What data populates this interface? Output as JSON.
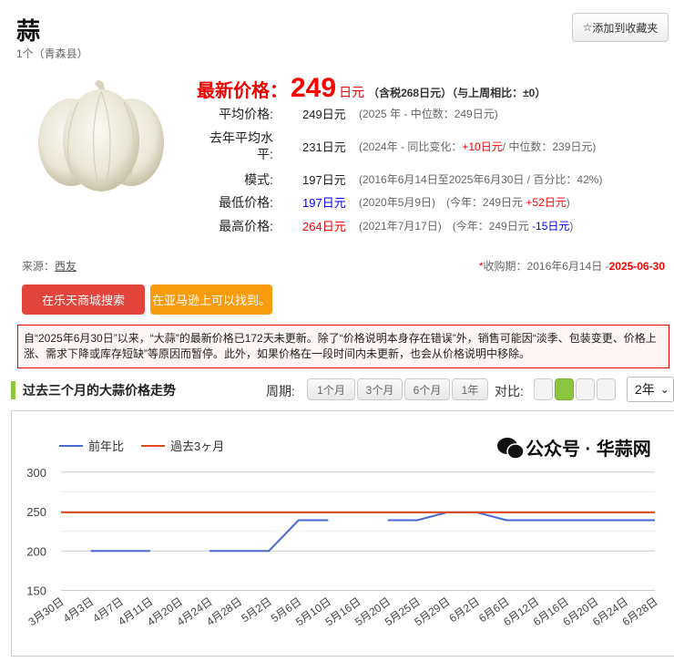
{
  "header": {
    "title": "蒜",
    "subtitle": "1个（青森县）",
    "favorite_icon": "star-outline-icon",
    "favorite_label": "添加到收藏夹"
  },
  "latest": {
    "label": "最新价格：",
    "price": "249",
    "unit": "日元",
    "tax_note": "（含税268日元）（与上周相比：±0）"
  },
  "stats": [
    {
      "key": "平均价格:",
      "value": "249日元",
      "value_color": "#222222",
      "note": [
        {
          "t": "(2025 年 - 中位数：249日元)"
        }
      ]
    },
    {
      "key": "去年平均水平:",
      "value": "231日元",
      "value_color": "#222222",
      "note": [
        {
          "t": "(2024年 - 同比变化："
        },
        {
          "t": "+10日元",
          "c": "#ff0000"
        },
        {
          "t": "/ 中位数：239日元)"
        }
      ]
    },
    {
      "key": "模式:",
      "value": "197日元",
      "value_color": "#222222",
      "note": [
        {
          "t": "(2016年6月14日至2025年6月30日 / 百分比：42%)"
        }
      ]
    },
    {
      "key": "最低价格:",
      "value": "197日元",
      "value_color": "#0000ff",
      "note": [
        {
          "t": "(2020年5月9日)　(今年：249日元 "
        },
        {
          "t": "+52日元",
          "c": "#ff0000"
        },
        {
          "t": ")"
        }
      ]
    },
    {
      "key": "最高价格:",
      "value": "264日元",
      "value_color": "#ff0000",
      "note": [
        {
          "t": "(2021年7月17日)　(今年：249日元 "
        },
        {
          "t": "-15日元",
          "c": "#0000ff"
        },
        {
          "t": ")"
        }
      ]
    }
  ],
  "source": {
    "label": "来源：",
    "link": "西友"
  },
  "period": {
    "prefix": "*",
    "label": "收购期：2016年6月14日 -",
    "end": "2025-06-30"
  },
  "buttons": {
    "rakuten": "在乐天商城搜索",
    "amazon": "在亚马逊上可以找到。",
    "rakuten_color": "#e2453c",
    "amazon_color": "#f89c0e"
  },
  "notice": "自“2025年6月30日”以来，“大蒜”的最新价格已172天未更新。除了“价格说明本身存在错误”外，销售可能因“淡季、包装变更、价格上涨、需求下降或库存短缺”等原因而暂停。此外，如果价格在一段时间内未更新，也会从价格说明中移除。",
  "trend": {
    "title": "过去三个月的大蒜价格走势",
    "period_label": "周期:",
    "periods": [
      "1个月",
      "3个月",
      "6个月",
      "1年"
    ],
    "compare_label": "对比:",
    "compare_selected": 1,
    "compare_count": 4,
    "accent": "#8cc63f",
    "range_select": "2年"
  },
  "chart_data": {
    "type": "line",
    "categories": [
      "3月30日",
      "4月3日",
      "4月7日",
      "4月11日",
      "4月20日",
      "4月24日",
      "4月28日",
      "5月2日",
      "5月6日",
      "5月10日",
      "5月16日",
      "5月20日",
      "5月25日",
      "5月29日",
      "6月2日",
      "6月6日",
      "6月12日",
      "6月16日",
      "6月20日",
      "6月24日",
      "6月28日"
    ],
    "yticks": [
      150,
      200,
      250,
      300
    ],
    "ylim": [
      140,
      310
    ],
    "grid": true,
    "legend_position": "top-left",
    "series": [
      {
        "name": "前年比",
        "color": "#4a68d4",
        "values": [
          null,
          200,
          200,
          200,
          null,
          200,
          200,
          200,
          239,
          239,
          null,
          239,
          239,
          249,
          249,
          239,
          239,
          239,
          239,
          239,
          239
        ]
      },
      {
        "name": "過去3ヶ月",
        "color": "#dc4a1e",
        "values": [
          249,
          249,
          249,
          249,
          249,
          249,
          249,
          249,
          249,
          249,
          249,
          249,
          249,
          249,
          249,
          249,
          249,
          249,
          249,
          249,
          249
        ]
      }
    ]
  },
  "watermark": "公众号 · 华蒜网"
}
